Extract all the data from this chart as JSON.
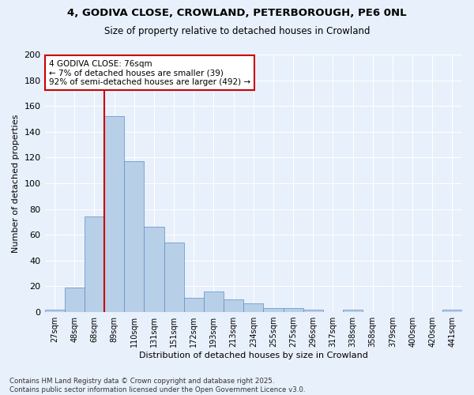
{
  "title1": "4, GODIVA CLOSE, CROWLAND, PETERBOROUGH, PE6 0NL",
  "title2": "Size of property relative to detached houses in Crowland",
  "xlabel": "Distribution of detached houses by size in Crowland",
  "ylabel": "Number of detached properties",
  "bar_labels": [
    "27sqm",
    "48sqm",
    "68sqm",
    "89sqm",
    "110sqm",
    "131sqm",
    "151sqm",
    "172sqm",
    "193sqm",
    "213sqm",
    "234sqm",
    "255sqm",
    "275sqm",
    "296sqm",
    "317sqm",
    "338sqm",
    "358sqm",
    "379sqm",
    "400sqm",
    "420sqm",
    "441sqm"
  ],
  "bar_values": [
    2,
    19,
    74,
    152,
    117,
    66,
    54,
    11,
    16,
    10,
    7,
    3,
    3,
    2,
    0,
    2,
    0,
    0,
    0,
    0,
    2
  ],
  "bar_color": "#b8cfe8",
  "bar_edge_color": "#5b8ec4",
  "background_color": "#e8f0fb",
  "grid_color": "#ffffff",
  "vline_x": 2.5,
  "vline_color": "#cc0000",
  "annotation_title": "4 GODIVA CLOSE: 76sqm",
  "annotation_line1": "← 7% of detached houses are smaller (39)",
  "annotation_line2": "92% of semi-detached houses are larger (492) →",
  "annotation_box_facecolor": "#ffffff",
  "annotation_box_edge": "#cc0000",
  "footer1": "Contains HM Land Registry data © Crown copyright and database right 2025.",
  "footer2": "Contains public sector information licensed under the Open Government Licence v3.0.",
  "ylim": [
    0,
    200
  ],
  "yticks": [
    0,
    20,
    40,
    60,
    80,
    100,
    120,
    140,
    160,
    180,
    200
  ]
}
